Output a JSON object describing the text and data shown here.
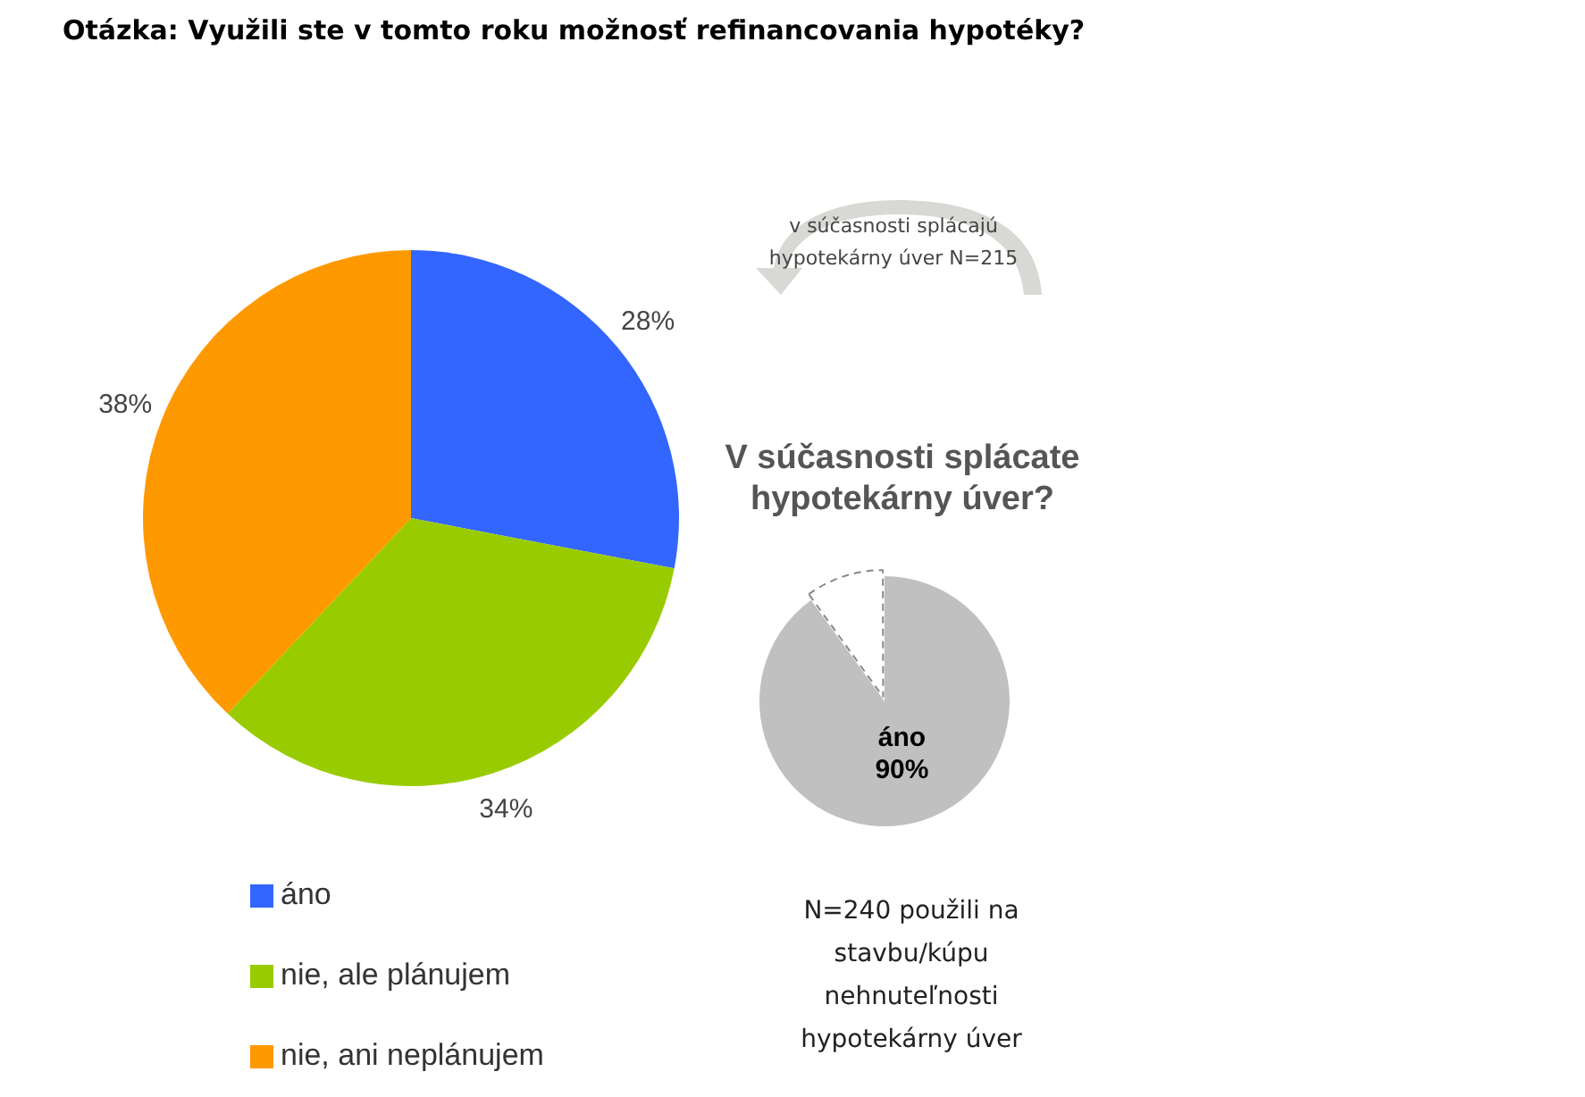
{
  "chart_data": [
    {
      "type": "pie",
      "title": "Otázka: Využili ste v tomto roku možnosť refinancovania hypotéky?",
      "categories": [
        "áno",
        "nie, ale plánujem",
        "nie, ani neplánujem"
      ],
      "values": [
        28,
        34,
        38
      ],
      "colors": [
        "#3366ff",
        "#99cc00",
        "#ff9900"
      ],
      "value_labels": [
        "28%",
        "34%",
        "38%"
      ],
      "legend": "bottom left"
    },
    {
      "type": "pie",
      "title": "V súčasnosti splácate hypotekárny úver?",
      "categories": [
        "áno",
        null
      ],
      "values": [
        90,
        10
      ],
      "colors": [
        "#c0c0c0",
        "#ffffff"
      ],
      "value_labels": [
        "90%",
        null
      ],
      "annotations": [
        "v súčasnosti splácajú hypotekárny úver N=215",
        "N=240 použili na stavbu/kúpu nehnuteľnosti hypotekárny úver"
      ]
    }
  ]
}
